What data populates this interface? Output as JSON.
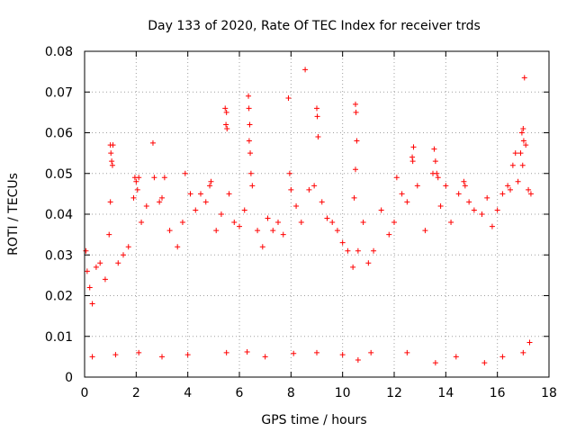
{
  "chart_data": {
    "type": "scatter",
    "title": "Day 133 of 2020, Rate Of TEC Index for receiver trds",
    "xlabel": "GPS time / hours",
    "ylabel": "ROTI / TECUs",
    "xlim": [
      0,
      18
    ],
    "ylim": [
      0,
      0.08
    ],
    "x_ticks": [
      "0",
      "2",
      "4",
      "6",
      "8",
      "10",
      "12",
      "14",
      "16",
      "18"
    ],
    "y_ticks": [
      "0",
      "0.01",
      "0.02",
      "0.03",
      "0.04",
      "0.05",
      "0.06",
      "0.07",
      "0.08"
    ],
    "grid": true,
    "marker": "+",
    "color": "#ff0000",
    "series": [
      {
        "points": [
          [
            0.05,
            0.031
          ],
          [
            0.1,
            0.026
          ],
          [
            0.2,
            0.022
          ],
          [
            0.3,
            0.018
          ],
          [
            0.45,
            0.027
          ],
          [
            0.6,
            0.028
          ],
          [
            0.8,
            0.024
          ],
          [
            0.95,
            0.035
          ],
          [
            1.0,
            0.057
          ],
          [
            1.02,
            0.055
          ],
          [
            1.05,
            0.053
          ],
          [
            1.08,
            0.052
          ],
          [
            1.0,
            0.043
          ],
          [
            1.1,
            0.057
          ],
          [
            1.3,
            0.028
          ],
          [
            1.5,
            0.03
          ],
          [
            1.7,
            0.032
          ],
          [
            1.9,
            0.044
          ],
          [
            1.95,
            0.049
          ],
          [
            2.0,
            0.048
          ],
          [
            2.05,
            0.046
          ],
          [
            2.1,
            0.049
          ],
          [
            2.2,
            0.038
          ],
          [
            2.4,
            0.042
          ],
          [
            2.65,
            0.0575
          ],
          [
            2.7,
            0.049
          ],
          [
            2.9,
            0.043
          ],
          [
            3.0,
            0.044
          ],
          [
            3.1,
            0.049
          ],
          [
            3.3,
            0.036
          ],
          [
            3.6,
            0.032
          ],
          [
            3.8,
            0.038
          ],
          [
            3.9,
            0.05
          ],
          [
            4.1,
            0.045
          ],
          [
            4.3,
            0.041
          ],
          [
            4.5,
            0.045
          ],
          [
            4.7,
            0.043
          ],
          [
            4.85,
            0.047
          ],
          [
            4.9,
            0.048
          ],
          [
            5.1,
            0.036
          ],
          [
            5.3,
            0.04
          ],
          [
            5.45,
            0.066
          ],
          [
            5.5,
            0.065
          ],
          [
            5.48,
            0.062
          ],
          [
            5.52,
            0.061
          ],
          [
            5.6,
            0.045
          ],
          [
            5.8,
            0.038
          ],
          [
            6.0,
            0.037
          ],
          [
            6.2,
            0.041
          ],
          [
            6.35,
            0.069
          ],
          [
            6.37,
            0.066
          ],
          [
            6.4,
            0.062
          ],
          [
            6.38,
            0.058
          ],
          [
            6.42,
            0.055
          ],
          [
            6.45,
            0.05
          ],
          [
            6.5,
            0.047
          ],
          [
            6.7,
            0.036
          ],
          [
            6.9,
            0.032
          ],
          [
            7.1,
            0.039
          ],
          [
            7.3,
            0.036
          ],
          [
            7.5,
            0.038
          ],
          [
            7.7,
            0.035
          ],
          [
            7.9,
            0.0685
          ],
          [
            7.95,
            0.05
          ],
          [
            8.0,
            0.046
          ],
          [
            8.2,
            0.042
          ],
          [
            8.4,
            0.038
          ],
          [
            8.55,
            0.0755
          ],
          [
            8.7,
            0.046
          ],
          [
            8.9,
            0.047
          ],
          [
            9.0,
            0.066
          ],
          [
            9.02,
            0.064
          ],
          [
            9.05,
            0.059
          ],
          [
            9.2,
            0.043
          ],
          [
            9.4,
            0.039
          ],
          [
            9.6,
            0.038
          ],
          [
            9.8,
            0.036
          ],
          [
            10.0,
            0.033
          ],
          [
            10.2,
            0.031
          ],
          [
            10.4,
            0.027
          ],
          [
            10.45,
            0.044
          ],
          [
            10.5,
            0.067
          ],
          [
            10.52,
            0.065
          ],
          [
            10.55,
            0.058
          ],
          [
            10.5,
            0.051
          ],
          [
            10.6,
            0.031
          ],
          [
            10.8,
            0.038
          ],
          [
            11.0,
            0.028
          ],
          [
            11.2,
            0.031
          ],
          [
            11.5,
            0.041
          ],
          [
            11.8,
            0.035
          ],
          [
            12.0,
            0.038
          ],
          [
            12.1,
            0.049
          ],
          [
            12.3,
            0.045
          ],
          [
            12.5,
            0.043
          ],
          [
            12.7,
            0.054
          ],
          [
            12.72,
            0.053
          ],
          [
            12.75,
            0.0565
          ],
          [
            12.9,
            0.047
          ],
          [
            13.2,
            0.036
          ],
          [
            13.5,
            0.05
          ],
          [
            13.55,
            0.056
          ],
          [
            13.6,
            0.053
          ],
          [
            13.65,
            0.05
          ],
          [
            13.7,
            0.049
          ],
          [
            13.8,
            0.042
          ],
          [
            14.0,
            0.047
          ],
          [
            14.2,
            0.038
          ],
          [
            14.5,
            0.045
          ],
          [
            14.7,
            0.048
          ],
          [
            14.75,
            0.047
          ],
          [
            14.9,
            0.043
          ],
          [
            15.1,
            0.041
          ],
          [
            15.4,
            0.04
          ],
          [
            15.6,
            0.044
          ],
          [
            15.8,
            0.037
          ],
          [
            16.0,
            0.041
          ],
          [
            16.2,
            0.045
          ],
          [
            16.4,
            0.047
          ],
          [
            16.5,
            0.046
          ],
          [
            16.6,
            0.052
          ],
          [
            16.7,
            0.055
          ],
          [
            16.8,
            0.048
          ],
          [
            16.9,
            0.055
          ],
          [
            16.95,
            0.06
          ],
          [
            17.0,
            0.061
          ],
          [
            17.02,
            0.058
          ],
          [
            16.98,
            0.052
          ],
          [
            17.05,
            0.0735
          ],
          [
            17.1,
            0.057
          ],
          [
            17.2,
            0.046
          ],
          [
            17.3,
            0.045
          ],
          [
            0.3,
            0.005
          ],
          [
            1.2,
            0.0055
          ],
          [
            2.1,
            0.006
          ],
          [
            3.0,
            0.005
          ],
          [
            4.0,
            0.0055
          ],
          [
            5.5,
            0.006
          ],
          [
            6.3,
            0.0062
          ],
          [
            7.0,
            0.005
          ],
          [
            8.1,
            0.0058
          ],
          [
            9.0,
            0.006
          ],
          [
            10.0,
            0.0055
          ],
          [
            10.6,
            0.0042
          ],
          [
            11.1,
            0.006
          ],
          [
            12.5,
            0.006
          ],
          [
            13.6,
            0.0035
          ],
          [
            14.4,
            0.005
          ],
          [
            15.5,
            0.0035
          ],
          [
            16.2,
            0.005
          ],
          [
            17.0,
            0.006
          ],
          [
            17.25,
            0.0085
          ]
        ]
      }
    ]
  }
}
